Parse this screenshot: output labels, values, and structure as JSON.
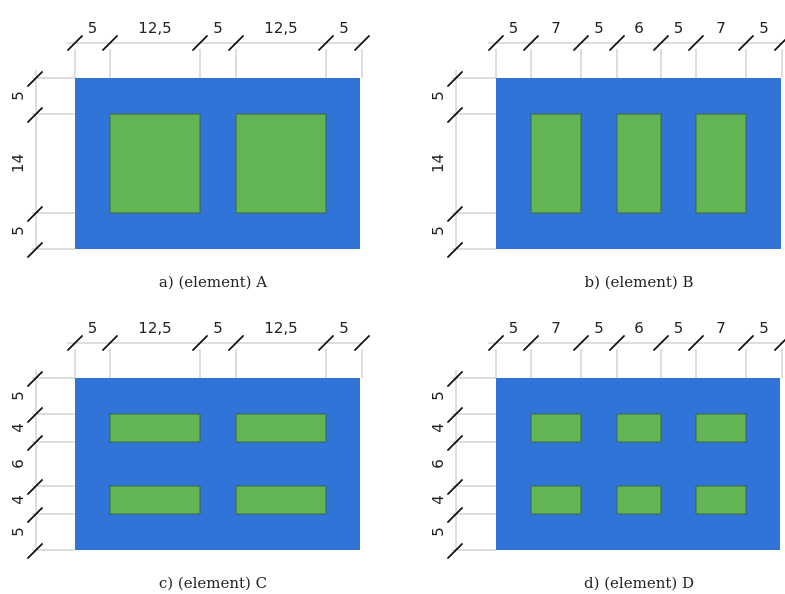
{
  "colors": {
    "body": "#2f74d6",
    "void": "#63b453",
    "dim_line": "#bcbcbc",
    "tick": "#111111",
    "text": "#222222"
  },
  "panels": [
    {
      "id": "a",
      "caption": "a)    (element) A",
      "horizontal_dims": [
        "5",
        "12,5",
        "5",
        "12,5",
        "5"
      ],
      "vertical_dims": [
        "5",
        "14",
        "5"
      ],
      "void_columns": 2,
      "void_rows": 1
    },
    {
      "id": "b",
      "caption": "b)    (element) B",
      "horizontal_dims": [
        "5",
        "7",
        "5",
        "6",
        "5",
        "7",
        "5"
      ],
      "vertical_dims": [
        "5",
        "14",
        "5"
      ],
      "void_columns": 3,
      "void_rows": 1
    },
    {
      "id": "c",
      "caption": "c)    (element) C",
      "horizontal_dims": [
        "5",
        "12,5",
        "5",
        "12,5",
        "5"
      ],
      "vertical_dims": [
        "5",
        "4",
        "6",
        "4",
        "5"
      ],
      "void_columns": 2,
      "void_rows": 2
    },
    {
      "id": "d",
      "caption": "d)    (element) D",
      "horizontal_dims": [
        "5",
        "7",
        "5",
        "6",
        "5",
        "7",
        "5"
      ],
      "vertical_dims": [
        "5",
        "4",
        "6",
        "4",
        "5"
      ],
      "void_columns": 3,
      "void_rows": 2
    }
  ]
}
